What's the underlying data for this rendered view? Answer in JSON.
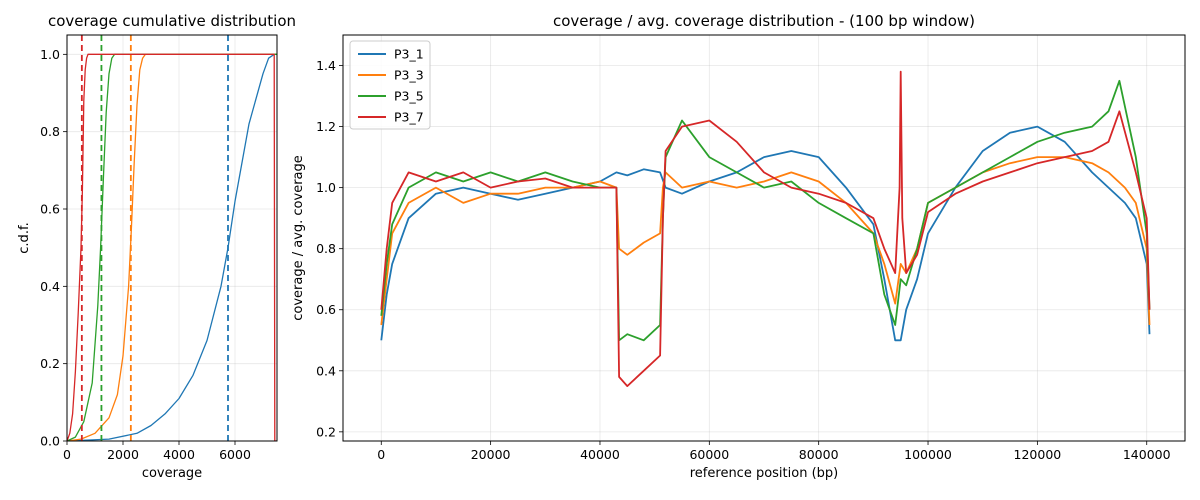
{
  "chart_data": [
    {
      "type": "line",
      "title": "coverage cumulative distribution",
      "xlabel": "coverage",
      "ylabel": "c.d.f.",
      "xlim": [
        0,
        7500
      ],
      "ylim": [
        0,
        1.05
      ],
      "xticks": [
        0,
        2000,
        4000,
        6000
      ],
      "xtick_labels": [
        "0",
        "2000",
        "4000",
        "6000"
      ],
      "yticks": [
        0,
        0.2,
        0.4,
        0.6,
        0.8,
        1.0
      ],
      "ytick_labels": [
        "0.0",
        "0.2",
        "0.4",
        "0.6",
        "0.8",
        "1.0"
      ],
      "grid": true,
      "series": [
        {
          "name": "P3_1",
          "color": "#1f77b4",
          "dashed_x": 5750,
          "x": [
            0,
            1500,
            2500,
            3000,
            3500,
            4000,
            4500,
            5000,
            5500,
            5750,
            6000,
            6500,
            7000,
            7200,
            7400,
            7420,
            7500
          ],
          "y": [
            0,
            0.005,
            0.02,
            0.04,
            0.07,
            0.11,
            0.17,
            0.26,
            0.4,
            0.5,
            0.62,
            0.82,
            0.95,
            0.99,
            1.0,
            1.0,
            1.0
          ]
        },
        {
          "name": "P3_3",
          "color": "#ff7f0e",
          "dashed_x": 2280,
          "x": [
            0,
            500,
            1000,
            1500,
            1800,
            2000,
            2200,
            2300,
            2400,
            2500,
            2600,
            2700,
            2800,
            7500
          ],
          "y": [
            0,
            0.005,
            0.02,
            0.06,
            0.12,
            0.22,
            0.4,
            0.55,
            0.72,
            0.87,
            0.96,
            0.99,
            1.0,
            1.0
          ]
        },
        {
          "name": "P3_5",
          "color": "#2ca02c",
          "dashed_x": 1230,
          "x": [
            0,
            300,
            600,
            900,
            1100,
            1200,
            1300,
            1400,
            1500,
            1600,
            1700,
            7500
          ],
          "y": [
            0,
            0.01,
            0.05,
            0.15,
            0.35,
            0.5,
            0.68,
            0.85,
            0.95,
            0.99,
            1.0,
            1.0
          ]
        },
        {
          "name": "P3_7",
          "color": "#d62728",
          "dashed_x": 530,
          "x": [
            0,
            100,
            200,
            300,
            400,
            500,
            550,
            600,
            650,
            700,
            750,
            800,
            7400,
            7420,
            7500
          ],
          "y": [
            0,
            0.02,
            0.07,
            0.18,
            0.33,
            0.5,
            0.65,
            0.88,
            0.96,
            0.99,
            1.0,
            1.0,
            1.0,
            0,
            0
          ]
        }
      ]
    },
    {
      "type": "line",
      "title": "coverage / avg. coverage distribution - (100 bp window)",
      "xlabel": "reference position (bp)",
      "ylabel": "coverage / avg. coverage",
      "xlim": [
        -7000,
        147000
      ],
      "ylim": [
        0.17,
        1.5
      ],
      "xticks": [
        0,
        20000,
        40000,
        60000,
        80000,
        100000,
        120000,
        140000
      ],
      "xtick_labels": [
        "0",
        "20000",
        "40000",
        "60000",
        "80000",
        "100000",
        "120000",
        "140000"
      ],
      "yticks": [
        0.2,
        0.4,
        0.6,
        0.8,
        1.0,
        1.2,
        1.4
      ],
      "ytick_labels": [
        "0.2",
        "0.4",
        "0.6",
        "0.8",
        "1.0",
        "1.2",
        "1.4"
      ],
      "grid": true,
      "legend_position": "top-left",
      "series": [
        {
          "name": "P3_1",
          "color": "#1f77b4",
          "x": [
            0,
            1000,
            2000,
            5000,
            10000,
            15000,
            20000,
            25000,
            30000,
            35000,
            40000,
            43000,
            45000,
            48000,
            51000,
            52000,
            55000,
            60000,
            65000,
            70000,
            75000,
            80000,
            85000,
            90000,
            92000,
            94000,
            95000,
            96000,
            98000,
            100000,
            105000,
            110000,
            115000,
            120000,
            125000,
            130000,
            133000,
            136000,
            138000,
            140000,
            140500
          ],
          "y": [
            0.5,
            0.65,
            0.75,
            0.9,
            0.98,
            1.0,
            0.98,
            0.96,
            0.98,
            1.0,
            1.02,
            1.05,
            1.04,
            1.06,
            1.05,
            1.0,
            0.98,
            1.02,
            1.05,
            1.1,
            1.12,
            1.1,
            1.0,
            0.88,
            0.7,
            0.5,
            0.5,
            0.6,
            0.7,
            0.85,
            1.0,
            1.12,
            1.18,
            1.2,
            1.15,
            1.05,
            1.0,
            0.95,
            0.9,
            0.75,
            0.52
          ]
        },
        {
          "name": "P3_3",
          "color": "#ff7f0e",
          "x": [
            0,
            1000,
            2000,
            5000,
            10000,
            15000,
            20000,
            25000,
            30000,
            35000,
            40000,
            43000,
            43500,
            45000,
            48000,
            51000,
            51500,
            52000,
            55000,
            60000,
            65000,
            70000,
            75000,
            80000,
            85000,
            90000,
            92000,
            94000,
            95000,
            96000,
            98000,
            100000,
            105000,
            110000,
            115000,
            120000,
            125000,
            130000,
            133000,
            136000,
            138000,
            140000,
            140500
          ],
          "y": [
            0.55,
            0.7,
            0.85,
            0.95,
            1.0,
            0.95,
            0.98,
            0.98,
            1.0,
            1.0,
            1.02,
            1.0,
            0.8,
            0.78,
            0.82,
            0.85,
            1.0,
            1.05,
            1.0,
            1.02,
            1.0,
            1.02,
            1.05,
            1.02,
            0.95,
            0.85,
            0.75,
            0.62,
            0.75,
            0.72,
            0.8,
            0.95,
            1.0,
            1.05,
            1.08,
            1.1,
            1.1,
            1.08,
            1.05,
            1.0,
            0.95,
            0.8,
            0.55
          ]
        },
        {
          "name": "P3_5",
          "color": "#2ca02c",
          "x": [
            0,
            1000,
            2000,
            5000,
            10000,
            15000,
            20000,
            25000,
            30000,
            35000,
            40000,
            43000,
            43500,
            45000,
            48000,
            51000,
            51500,
            52000,
            55000,
            60000,
            65000,
            70000,
            75000,
            80000,
            85000,
            90000,
            92000,
            94000,
            95000,
            96000,
            98000,
            100000,
            105000,
            110000,
            115000,
            120000,
            125000,
            130000,
            133000,
            135000,
            138000,
            140000,
            140500
          ],
          "y": [
            0.58,
            0.75,
            0.88,
            1.0,
            1.05,
            1.02,
            1.05,
            1.02,
            1.05,
            1.02,
            1.0,
            1.0,
            0.5,
            0.52,
            0.5,
            0.55,
            0.9,
            1.1,
            1.22,
            1.1,
            1.05,
            1.0,
            1.02,
            0.95,
            0.9,
            0.85,
            0.65,
            0.55,
            0.7,
            0.68,
            0.8,
            0.95,
            1.0,
            1.05,
            1.1,
            1.15,
            1.18,
            1.2,
            1.25,
            1.35,
            1.1,
            0.85,
            0.6
          ]
        },
        {
          "name": "P3_7",
          "color": "#d62728",
          "x": [
            0,
            1000,
            2000,
            5000,
            10000,
            15000,
            20000,
            25000,
            30000,
            35000,
            40000,
            43000,
            43500,
            45000,
            48000,
            51000,
            51500,
            52000,
            55000,
            60000,
            65000,
            70000,
            75000,
            80000,
            85000,
            90000,
            92000,
            94000,
            94800,
            95000,
            95300,
            96000,
            98000,
            100000,
            105000,
            110000,
            115000,
            120000,
            125000,
            130000,
            133000,
            135000,
            138000,
            140000,
            140500
          ],
          "y": [
            0.6,
            0.8,
            0.95,
            1.05,
            1.02,
            1.05,
            1.0,
            1.02,
            1.03,
            1.0,
            1.0,
            1.0,
            0.38,
            0.35,
            0.4,
            0.45,
            0.9,
            1.12,
            1.2,
            1.22,
            1.15,
            1.05,
            1.0,
            0.98,
            0.95,
            0.9,
            0.8,
            0.72,
            1.0,
            1.38,
            0.9,
            0.72,
            0.78,
            0.92,
            0.98,
            1.02,
            1.05,
            1.08,
            1.1,
            1.12,
            1.15,
            1.25,
            1.05,
            0.9,
            0.6
          ]
        }
      ]
    }
  ]
}
